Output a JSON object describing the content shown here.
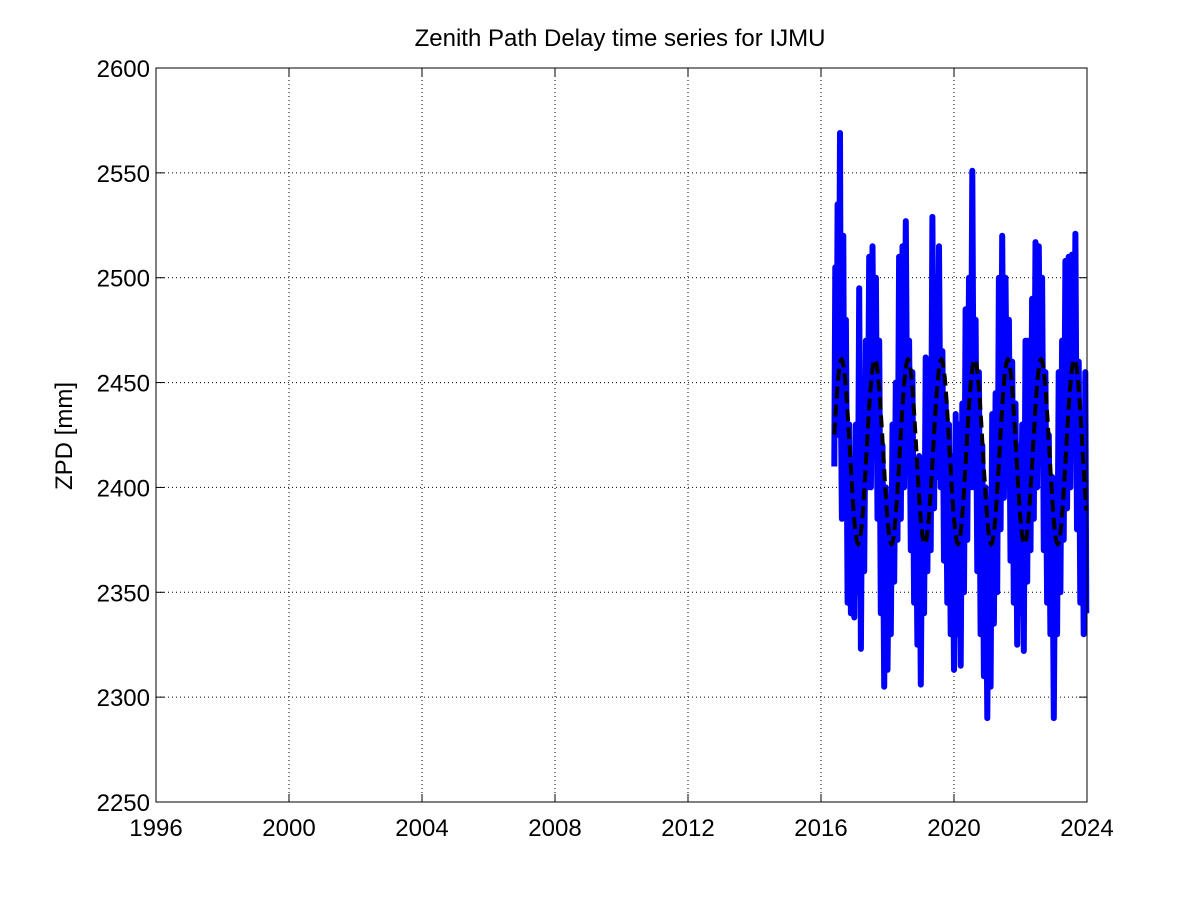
{
  "chart_data": {
    "type": "line",
    "title": "Zenith Path Delay time series for IJMU",
    "xlabel": "",
    "ylabel": "ZPD [mm]",
    "xlim": [
      1996,
      2024
    ],
    "ylim": [
      2250,
      2600
    ],
    "xticks": [
      "1996",
      "2000",
      "2004",
      "2008",
      "2012",
      "2016",
      "2020",
      "2024"
    ],
    "yticks": [
      "2250",
      "2300",
      "2350",
      "2400",
      "2450",
      "2500",
      "2550",
      "2600"
    ],
    "grid": true,
    "series": [
      {
        "style": "solid",
        "color": "#0000ff",
        "points": [
          [
            2016.4,
            2410
          ],
          [
            2016.43,
            2505
          ],
          [
            2016.47,
            2435
          ],
          [
            2016.5,
            2535
          ],
          [
            2016.53,
            2425
          ],
          [
            2016.57,
            2569
          ],
          [
            2016.6,
            2440
          ],
          [
            2016.63,
            2385
          ],
          [
            2016.67,
            2520
          ],
          [
            2016.7,
            2400
          ],
          [
            2016.75,
            2480
          ],
          [
            2016.8,
            2345
          ],
          [
            2016.85,
            2430
          ],
          [
            2016.9,
            2340
          ],
          [
            2016.95,
            2395
          ],
          [
            2017.0,
            2338
          ],
          [
            2017.05,
            2430
          ],
          [
            2017.1,
            2350
          ],
          [
            2017.15,
            2495
          ],
          [
            2017.2,
            2323
          ],
          [
            2017.25,
            2445
          ],
          [
            2017.3,
            2360
          ],
          [
            2017.35,
            2470
          ],
          [
            2017.4,
            2400
          ],
          [
            2017.45,
            2510
          ],
          [
            2017.5,
            2400
          ],
          [
            2017.55,
            2515
          ],
          [
            2017.6,
            2420
          ],
          [
            2017.65,
            2500
          ],
          [
            2017.7,
            2385
          ],
          [
            2017.75,
            2470
          ],
          [
            2017.8,
            2340
          ],
          [
            2017.85,
            2420
          ],
          [
            2017.9,
            2305
          ],
          [
            2017.95,
            2400
          ],
          [
            2018.0,
            2313
          ],
          [
            2018.05,
            2395
          ],
          [
            2018.1,
            2330
          ],
          [
            2018.15,
            2430
          ],
          [
            2018.2,
            2355
          ],
          [
            2018.25,
            2450
          ],
          [
            2018.3,
            2375
          ],
          [
            2018.35,
            2510
          ],
          [
            2018.4,
            2385
          ],
          [
            2018.45,
            2515
          ],
          [
            2018.5,
            2400
          ],
          [
            2018.55,
            2527
          ],
          [
            2018.6,
            2410
          ],
          [
            2018.65,
            2470
          ],
          [
            2018.7,
            2370
          ],
          [
            2018.75,
            2455
          ],
          [
            2018.8,
            2345
          ],
          [
            2018.85,
            2410
          ],
          [
            2018.9,
            2325
          ],
          [
            2018.95,
            2415
          ],
          [
            2019.0,
            2306
          ],
          [
            2019.05,
            2410
          ],
          [
            2019.1,
            2340
          ],
          [
            2019.15,
            2462
          ],
          [
            2019.2,
            2360
          ],
          [
            2019.25,
            2460
          ],
          [
            2019.3,
            2370
          ],
          [
            2019.35,
            2529
          ],
          [
            2019.4,
            2390
          ],
          [
            2019.45,
            2500
          ],
          [
            2019.5,
            2405
          ],
          [
            2019.55,
            2515
          ],
          [
            2019.6,
            2400
          ],
          [
            2019.65,
            2465
          ],
          [
            2019.7,
            2365
          ],
          [
            2019.75,
            2440
          ],
          [
            2019.8,
            2345
          ],
          [
            2019.85,
            2430
          ],
          [
            2019.9,
            2330
          ],
          [
            2019.95,
            2415
          ],
          [
            2020.0,
            2313
          ],
          [
            2020.05,
            2435
          ],
          [
            2020.1,
            2330
          ],
          [
            2020.15,
            2430
          ],
          [
            2020.2,
            2315
          ],
          [
            2020.25,
            2440
          ],
          [
            2020.3,
            2350
          ],
          [
            2020.35,
            2485
          ],
          [
            2020.4,
            2375
          ],
          [
            2020.45,
            2500
          ],
          [
            2020.5,
            2400
          ],
          [
            2020.55,
            2551
          ],
          [
            2020.6,
            2400
          ],
          [
            2020.65,
            2480
          ],
          [
            2020.7,
            2360
          ],
          [
            2020.75,
            2455
          ],
          [
            2020.8,
            2330
          ],
          [
            2020.85,
            2420
          ],
          [
            2020.9,
            2310
          ],
          [
            2020.95,
            2400
          ],
          [
            2021.0,
            2290
          ],
          [
            2021.05,
            2390
          ],
          [
            2021.1,
            2305
          ],
          [
            2021.15,
            2435
          ],
          [
            2021.2,
            2335
          ],
          [
            2021.25,
            2445
          ],
          [
            2021.3,
            2350
          ],
          [
            2021.35,
            2500
          ],
          [
            2021.4,
            2380
          ],
          [
            2021.45,
            2520
          ],
          [
            2021.5,
            2395
          ],
          [
            2021.55,
            2500
          ],
          [
            2021.6,
            2410
          ],
          [
            2021.65,
            2480
          ],
          [
            2021.7,
            2365
          ],
          [
            2021.75,
            2460
          ],
          [
            2021.8,
            2345
          ],
          [
            2021.85,
            2440
          ],
          [
            2021.9,
            2325
          ],
          [
            2021.95,
            2420
          ],
          [
            2022.0,
            2340
          ],
          [
            2022.05,
            2430
          ],
          [
            2022.1,
            2322
          ],
          [
            2022.15,
            2470
          ],
          [
            2022.2,
            2355
          ],
          [
            2022.25,
            2470
          ],
          [
            2022.3,
            2370
          ],
          [
            2022.35,
            2490
          ],
          [
            2022.4,
            2385
          ],
          [
            2022.45,
            2517
          ],
          [
            2022.5,
            2400
          ],
          [
            2022.55,
            2515
          ],
          [
            2022.6,
            2420
          ],
          [
            2022.65,
            2500
          ],
          [
            2022.7,
            2370
          ],
          [
            2022.75,
            2455
          ],
          [
            2022.8,
            2345
          ],
          [
            2022.85,
            2425
          ],
          [
            2022.9,
            2330
          ],
          [
            2022.95,
            2405
          ],
          [
            2023.0,
            2290
          ],
          [
            2023.05,
            2400
          ],
          [
            2023.1,
            2330
          ],
          [
            2023.15,
            2455
          ],
          [
            2023.2,
            2350
          ],
          [
            2023.25,
            2470
          ],
          [
            2023.3,
            2375
          ],
          [
            2023.35,
            2508
          ],
          [
            2023.4,
            2390
          ],
          [
            2023.45,
            2510
          ],
          [
            2023.5,
            2400
          ],
          [
            2023.55,
            2511
          ],
          [
            2023.6,
            2420
          ],
          [
            2023.65,
            2521
          ],
          [
            2023.7,
            2380
          ],
          [
            2023.75,
            2460
          ],
          [
            2023.8,
            2345
          ],
          [
            2023.85,
            2425
          ],
          [
            2023.9,
            2330
          ],
          [
            2023.95,
            2455
          ],
          [
            2023.98,
            2340
          ]
        ]
      },
      {
        "style": "dashed",
        "color": "#000000",
        "model": "seasonal fit",
        "mean": 2417,
        "amplitude": 44,
        "peak_phase": 0.62,
        "x_start": 2016.4,
        "x_end": 2023.98
      }
    ]
  }
}
